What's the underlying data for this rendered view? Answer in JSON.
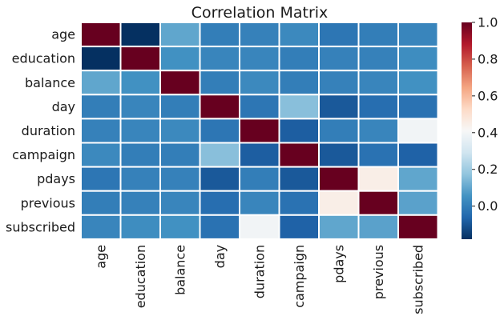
{
  "chart_data": {
    "type": "heatmap",
    "title": "Correlation Matrix",
    "rows": [
      "age",
      "education",
      "balance",
      "day",
      "duration",
      "campaign",
      "pdays",
      "previous",
      "subscribed"
    ],
    "columns": [
      "age",
      "education",
      "balance",
      "day",
      "duration",
      "campaign",
      "pdays",
      "previous",
      "subscribed"
    ],
    "values": [
      [
        1.0,
        -0.18,
        0.1,
        0.0,
        0.01,
        0.03,
        -0.02,
        0.0,
        0.02
      ],
      [
        -0.18,
        1.0,
        0.05,
        0.02,
        0.02,
        0.0,
        0.01,
        0.01,
        0.04
      ],
      [
        0.1,
        0.05,
        1.0,
        0.0,
        0.03,
        0.0,
        0.01,
        0.02,
        0.05
      ],
      [
        0.0,
        0.02,
        0.0,
        1.0,
        -0.02,
        0.16,
        -0.09,
        -0.04,
        -0.03
      ],
      [
        0.01,
        0.02,
        0.03,
        -0.02,
        1.0,
        -0.08,
        0.0,
        0.02,
        0.39
      ],
      [
        0.03,
        0.0,
        0.0,
        0.16,
        -0.08,
        1.0,
        -0.09,
        -0.03,
        -0.07
      ],
      [
        -0.02,
        0.01,
        0.01,
        -0.09,
        0.0,
        -0.09,
        1.0,
        0.45,
        0.1
      ],
      [
        0.0,
        0.01,
        0.02,
        -0.04,
        0.02,
        -0.03,
        0.45,
        1.0,
        0.09
      ],
      [
        0.02,
        0.04,
        0.05,
        -0.03,
        0.39,
        -0.07,
        0.1,
        0.09,
        1.0
      ]
    ],
    "colormap": "RdBu_r",
    "vmin": -0.18,
    "vmax": 1.0,
    "colorbar_ticks": [
      "0.0",
      "0.2",
      "0.4",
      "0.6",
      "0.8",
      "1.0"
    ],
    "colorbar_tick_values": [
      0.0,
      0.2,
      0.4,
      0.6,
      0.8,
      1.0
    ],
    "cell_border_color": "#ffffff"
  }
}
